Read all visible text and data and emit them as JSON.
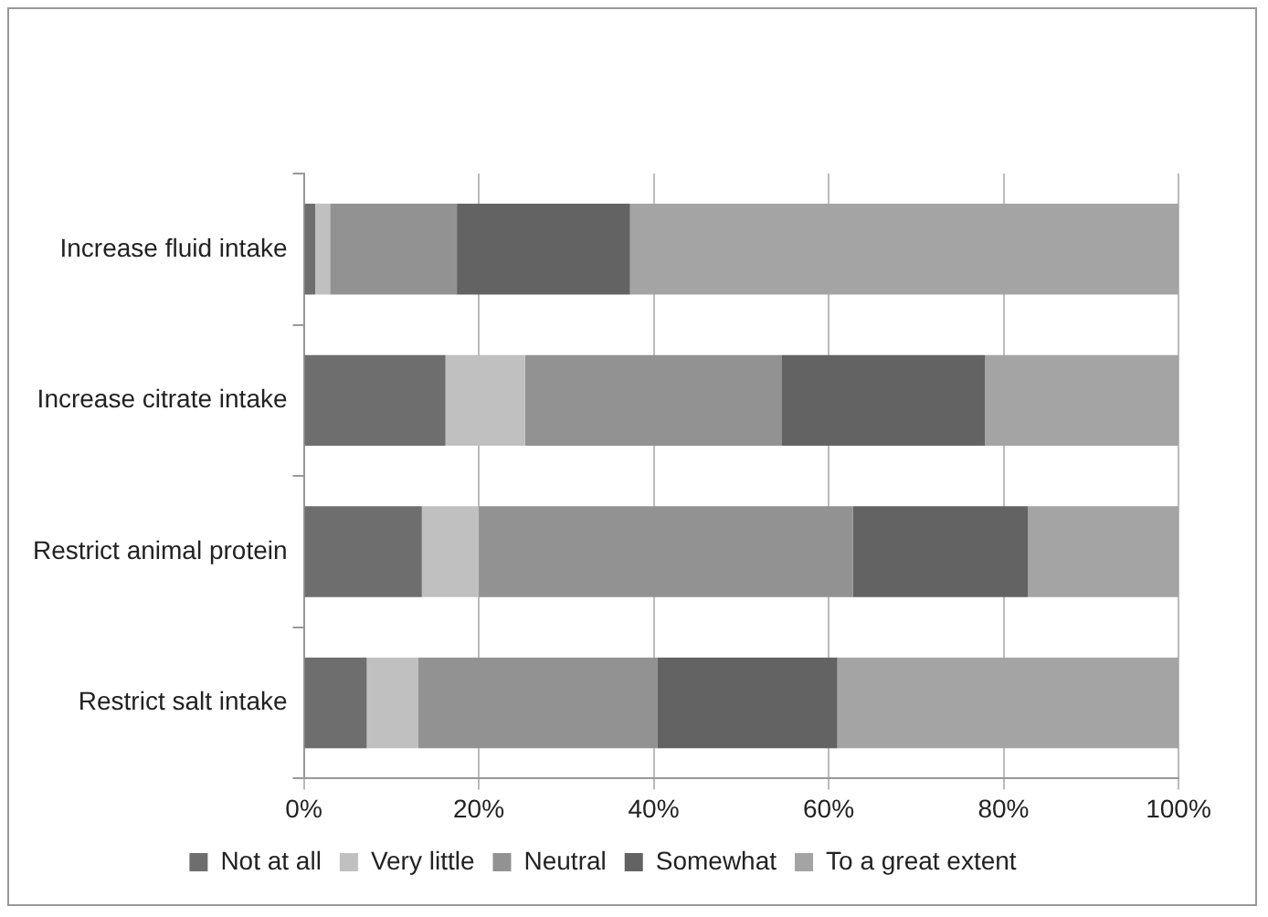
{
  "chart_data": {
    "type": "bar",
    "orientation": "horizontal",
    "stacked": true,
    "categories": [
      "Increase fluid intake",
      "Increase citrate intake",
      "Restrict animal protein",
      "Restrict salt intake"
    ],
    "series": [
      {
        "name": "Not at all",
        "color": "#6e6e6e",
        "values": [
          1.3,
          16.2,
          13.5,
          7.2
        ]
      },
      {
        "name": "Very little",
        "color": "#c0c0c0",
        "values": [
          1.7,
          9.1,
          6.5,
          5.9
        ]
      },
      {
        "name": "Neutral",
        "color": "#929292",
        "values": [
          14.5,
          29.3,
          42.8,
          27.3
        ]
      },
      {
        "name": "Somewhat",
        "color": "#636363",
        "values": [
          19.8,
          23.3,
          20,
          20.6
        ]
      },
      {
        "name": "To a great extent",
        "color": "#a4a4a4",
        "values": [
          62.7,
          22.1,
          17.2,
          39
        ]
      }
    ],
    "xlim": [
      0,
      100
    ],
    "xticks": [
      {
        "value": 0,
        "label": "0%"
      },
      {
        "value": 20,
        "label": "20%"
      },
      {
        "value": 40,
        "label": "40%"
      },
      {
        "value": 60,
        "label": "60%"
      },
      {
        "value": 80,
        "label": "80%"
      },
      {
        "value": 100,
        "label": "100%"
      }
    ],
    "grid": "x",
    "legend": "bottom"
  }
}
